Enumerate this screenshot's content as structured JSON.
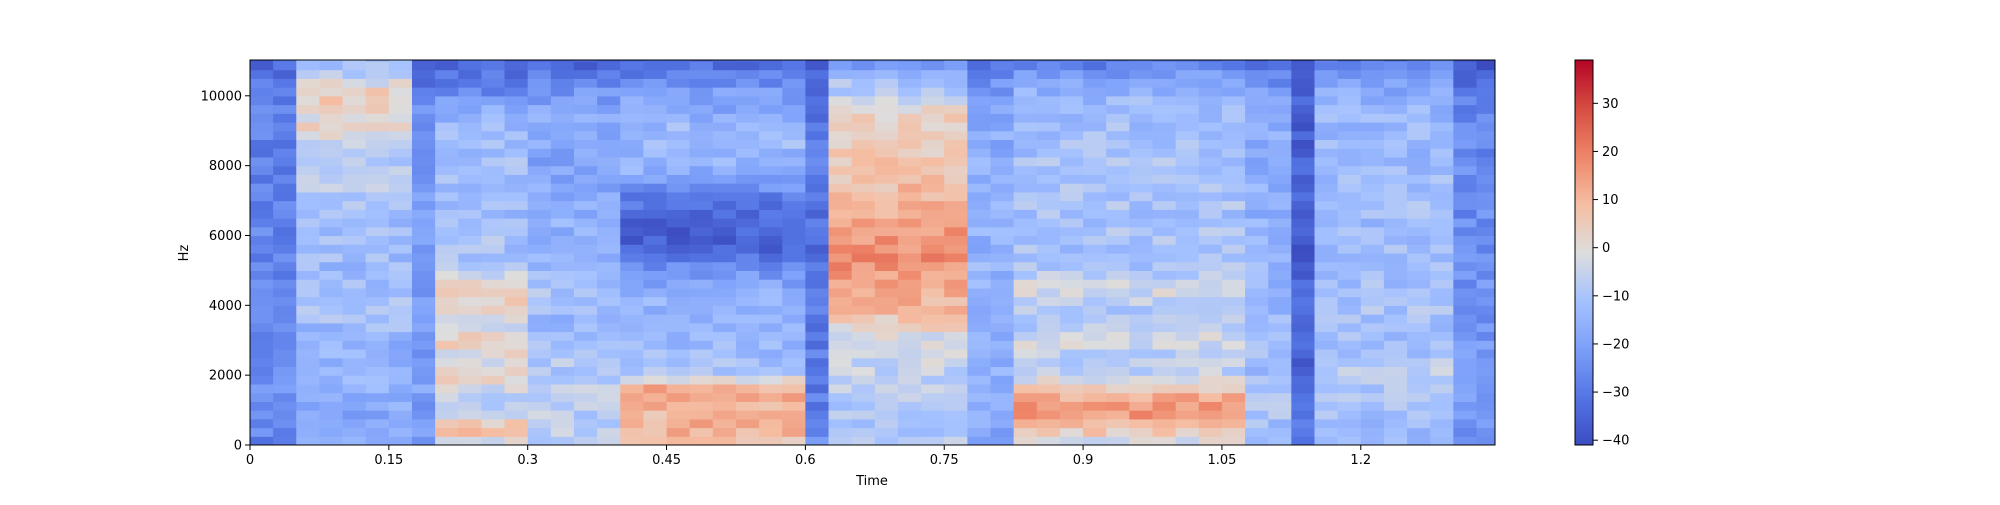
{
  "chart_data": {
    "type": "heatmap",
    "title": "",
    "xlabel": "Time",
    "ylabel": "Hz",
    "xlim": [
      0,
      1.345
    ],
    "ylim": [
      0,
      11025
    ],
    "x_ticks": [
      "0",
      "0.15",
      "0.3",
      "0.45",
      "0.6",
      "0.75",
      "0.9",
      "1.05",
      "1.2"
    ],
    "x_tick_values": [
      0,
      0.15,
      0.3,
      0.45,
      0.6,
      0.75,
      0.9,
      1.05,
      1.2
    ],
    "y_ticks": [
      "0",
      "2000",
      "4000",
      "6000",
      "8000",
      "10000"
    ],
    "y_tick_values": [
      0,
      2000,
      4000,
      6000,
      8000,
      10000
    ],
    "colorbar": {
      "range": [
        -41,
        39
      ],
      "ticks": [
        "−40",
        "−30",
        "−20",
        "−10",
        "0",
        "10",
        "20",
        "30"
      ],
      "tick_values": [
        -40,
        -30,
        -20,
        -10,
        0,
        10,
        20,
        30
      ],
      "colormap": "coolwarm"
    },
    "frame_times": [
      0,
      0.025,
      0.05,
      0.075,
      0.1,
      0.125,
      0.15,
      0.175,
      0.2,
      0.225,
      0.25,
      0.275,
      0.3,
      0.325,
      0.35,
      0.375,
      0.4,
      0.425,
      0.45,
      0.475,
      0.5,
      0.525,
      0.55,
      0.575,
      0.6,
      0.625,
      0.65,
      0.675,
      0.7,
      0.725,
      0.75,
      0.775,
      0.8,
      0.825,
      0.85,
      0.875,
      0.9,
      0.925,
      0.95,
      0.975,
      1.0,
      1.025,
      1.05,
      1.075,
      1.1,
      1.125,
      1.15,
      1.175,
      1.2,
      1.225,
      1.25,
      1.275,
      1.3,
      1.325
    ],
    "freq_bins_hz": [
      0,
      500,
      1000,
      1500,
      2000,
      2500,
      3000,
      3500,
      4000,
      4500,
      5000,
      5500,
      6000,
      6500,
      7000,
      7500,
      8000,
      8500,
      9000,
      9500,
      10000,
      10500,
      11000
    ],
    "segment_dB": [
      {
        "t": [
          0.0,
          0.05
        ],
        "levels": [
          -28,
          -25,
          -24,
          -24,
          -25,
          -25,
          -26,
          -26,
          -26,
          -26,
          -27,
          -27,
          -27,
          -27,
          -27,
          -27,
          -28,
          -28,
          -28,
          -28,
          -29,
          -30,
          -35
        ]
      },
      {
        "t": [
          0.05,
          0.18
        ],
        "levels": [
          -18,
          -20,
          -18,
          -15,
          -16,
          -15,
          -16,
          -12,
          -10,
          -12,
          -14,
          -12,
          -12,
          -12,
          -10,
          -6,
          -8,
          -6,
          2,
          0,
          6,
          -5,
          -12
        ]
      },
      {
        "t": [
          0.18,
          0.21
        ],
        "levels": [
          -24,
          -22,
          -22,
          -20,
          -20,
          -22,
          -22,
          -22,
          -20,
          -22,
          -22,
          -22,
          -20,
          -20,
          -20,
          -20,
          -22,
          -22,
          -22,
          -24,
          -28,
          -34,
          -38
        ]
      },
      {
        "t": [
          0.21,
          0.3
        ],
        "levels": [
          -4,
          10,
          -10,
          -6,
          4,
          -2,
          6,
          -4,
          2,
          8,
          -8,
          -12,
          -10,
          -12,
          -14,
          -12,
          -12,
          -12,
          -12,
          -16,
          -24,
          -30,
          -35
        ]
      },
      {
        "t": [
          0.3,
          0.4
        ],
        "levels": [
          -10,
          -6,
          -8,
          -6,
          -10,
          -8,
          -12,
          -14,
          -12,
          -10,
          -14,
          -16,
          -16,
          -16,
          -18,
          -18,
          -20,
          -18,
          -18,
          -18,
          -22,
          -28,
          -35
        ]
      },
      {
        "t": [
          0.4,
          0.6
        ],
        "levels": [
          6,
          12,
          8,
          18,
          -8,
          -12,
          -14,
          -16,
          -14,
          -18,
          -24,
          -34,
          -36,
          -34,
          -30,
          -22,
          -14,
          -14,
          -12,
          -18,
          -20,
          -26,
          -34
        ]
      },
      {
        "t": [
          0.6,
          0.63
        ],
        "levels": [
          -26,
          -26,
          -28,
          -30,
          -28,
          -30,
          -30,
          -30,
          -30,
          -30,
          -32,
          -34,
          -34,
          -32,
          -32,
          -30,
          -30,
          -30,
          -30,
          -30,
          -32,
          -34,
          -38
        ]
      },
      {
        "t": [
          0.63,
          0.78
        ],
        "levels": [
          -6,
          -10,
          -10,
          -6,
          -6,
          -4,
          -4,
          4,
          10,
          14,
          16,
          18,
          16,
          12,
          10,
          8,
          6,
          4,
          6,
          2,
          -6,
          -12,
          -25
        ]
      },
      {
        "t": [
          0.78,
          0.82
        ],
        "levels": [
          -20,
          -18,
          -18,
          -16,
          -16,
          -18,
          -18,
          -18,
          -16,
          -16,
          -14,
          -16,
          -16,
          -14,
          -16,
          -16,
          -16,
          -18,
          -16,
          -18,
          -20,
          -26,
          -34
        ]
      },
      {
        "t": [
          0.82,
          1.08
        ],
        "levels": [
          -4,
          8,
          18,
          10,
          -6,
          -8,
          -2,
          -10,
          -8,
          -2,
          -10,
          -12,
          -10,
          -12,
          -10,
          -10,
          -10,
          -12,
          -12,
          -12,
          -14,
          -20,
          -30
        ]
      },
      {
        "t": [
          1.08,
          1.12
        ],
        "levels": [
          -14,
          -12,
          -10,
          -10,
          -12,
          -12,
          -14,
          -14,
          -14,
          -14,
          -14,
          -16,
          -14,
          -16,
          -16,
          -16,
          -16,
          -18,
          -16,
          -18,
          -20,
          -26,
          -34
        ]
      },
      {
        "t": [
          1.12,
          1.15
        ],
        "levels": [
          -32,
          -32,
          -34,
          -34,
          -34,
          -35,
          -35,
          -35,
          -35,
          -36,
          -36,
          -36,
          -36,
          -36,
          -36,
          -36,
          -36,
          -36,
          -36,
          -36,
          -36,
          -37,
          -40
        ]
      },
      {
        "t": [
          1.15,
          1.3
        ],
        "levels": [
          -14,
          -12,
          -12,
          -10,
          -6,
          -10,
          -12,
          -12,
          -10,
          -12,
          -12,
          -12,
          -14,
          -12,
          -12,
          -12,
          -14,
          -14,
          -14,
          -14,
          -16,
          -22,
          -30
        ]
      },
      {
        "t": [
          1.3,
          1.345
        ],
        "levels": [
          -24,
          -22,
          -22,
          -22,
          -22,
          -22,
          -24,
          -24,
          -24,
          -24,
          -24,
          -26,
          -26,
          -26,
          -26,
          -26,
          -26,
          -26,
          -26,
          -28,
          -30,
          -34,
          -38
        ]
      }
    ]
  }
}
